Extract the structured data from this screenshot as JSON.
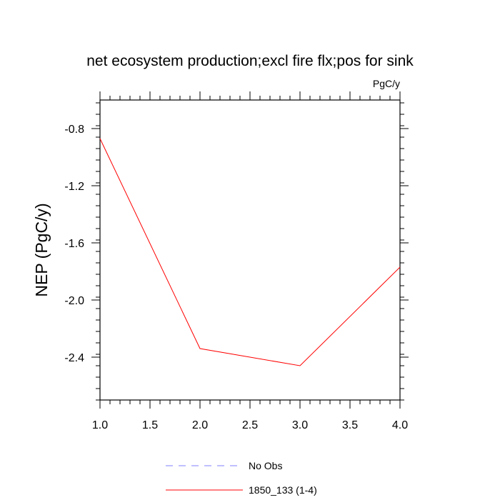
{
  "chart_data": {
    "type": "line",
    "title": "net ecosystem production;excl fire flx;pos for sink",
    "units": "PgC/y",
    "xlabel": "",
    "ylabel": "NEP  (PgC/y)",
    "xlim": [
      1.0,
      4.0
    ],
    "ylim": [
      -2.7,
      -0.6
    ],
    "xticks": [
      1.0,
      1.5,
      2.0,
      2.5,
      3.0,
      3.5,
      4.0
    ],
    "xtick_labels": [
      "1.0",
      "1.5",
      "2.0",
      "2.5",
      "3.0",
      "3.5",
      "4.0"
    ],
    "yticks": [
      -0.8,
      -1.2,
      -1.6,
      -2.0,
      -2.4
    ],
    "ytick_labels": [
      "-0.8",
      "-1.2",
      "-1.6",
      "-2.0",
      "-2.4"
    ],
    "grid": false,
    "legend_position": "bottom-center",
    "series": [
      {
        "name": "No Obs",
        "color": "#8080ff",
        "dash": "dashed",
        "x": [],
        "values": []
      },
      {
        "name": "1850_133 (1-4)",
        "color": "#ff0000",
        "dash": "solid",
        "x": [
          1.0,
          2.0,
          3.0,
          4.0
        ],
        "values": [
          -0.87,
          -2.34,
          -2.46,
          -1.77
        ]
      }
    ]
  }
}
